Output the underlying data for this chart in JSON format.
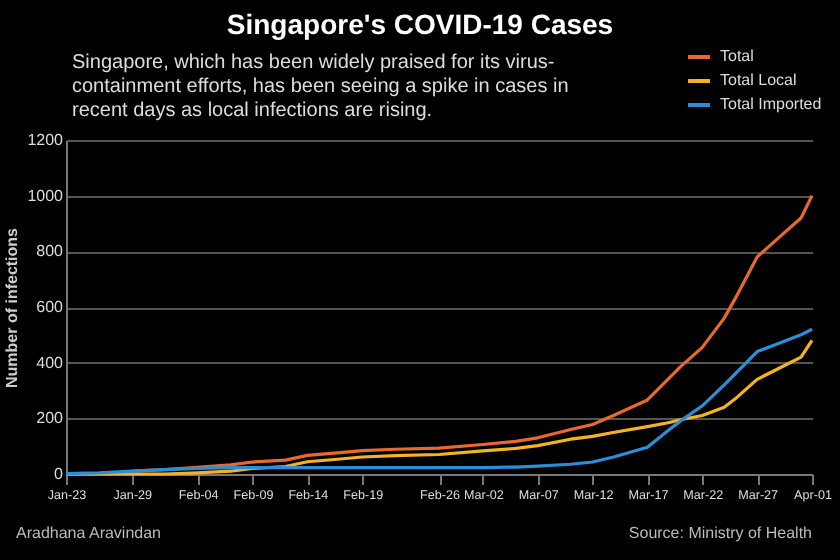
{
  "chart_data": {
    "type": "line",
    "title": "Singapore's COVID-19 Cases",
    "subtitle": "Singapore, which has been widely praised for its virus-containment efforts, has been seeing a spike in cases in recent days as local infections are rising.",
    "ylabel": "Number of infections",
    "annotations": [
      "Aradhana Aravindan",
      "Source: Ministry of Health"
    ],
    "x": [
      "--01-23",
      "--01-26",
      "--01-29",
      "--02-01",
      "--02-04",
      "--02-07",
      "--02-09",
      "--02-12",
      "--02-14",
      "--02-17",
      "--02-19",
      "--02-22",
      "--02-26",
      "--03-02",
      "--03-05",
      "--03-07",
      "--03-10",
      "--03-12",
      "--03-14",
      "--03-17",
      "--03-19",
      "--03-20",
      "--03-22",
      "--03-24",
      "--03-25",
      "--03-27",
      "--03-29",
      "--03-31",
      "--04-01"
    ],
    "series": [
      {
        "name": "Total",
        "color": "#e8692c",
        "values": [
          null,
          null,
          10,
          16,
          24,
          33,
          43,
          50,
          67,
          77,
          84,
          89,
          93,
          106,
          117,
          130,
          160,
          178,
          212,
          266,
          345,
          385,
          455,
          560,
          630,
          780,
          850,
          920,
          1000
        ]
      },
      {
        "name": "Total Local",
        "color": "#f5b324",
        "values": [
          0,
          0,
          0,
          0,
          4,
          10,
          20,
          27,
          44,
          54,
          61,
          66,
          70,
          83,
          92,
          102,
          125,
          135,
          150,
          170,
          185,
          195,
          210,
          240,
          270,
          340,
          380,
          420,
          480
        ]
      },
      {
        "name": "Total Imported",
        "color": "#2a8fd6",
        "values": [
          1,
          4,
          10,
          16,
          20,
          23,
          23,
          23,
          23,
          23,
          23,
          23,
          23,
          23,
          25,
          28,
          35,
          43,
          62,
          96,
          160,
          190,
          245,
          320,
          360,
          440,
          470,
          500,
          520
        ]
      }
    ],
    "xlim": [
      "--01-23",
      "--04-01"
    ],
    "xticks": [
      {
        "value": "--01-23",
        "label": "Jan-23"
      },
      {
        "value": "--01-29",
        "label": "Jan-29"
      },
      {
        "value": "--02-04",
        "label": "Feb-04"
      },
      {
        "value": "--02-09",
        "label": "Feb-09"
      },
      {
        "value": "--02-14",
        "label": "Feb-14"
      },
      {
        "value": "--02-19",
        "label": "Feb-19"
      },
      {
        "value": "--02-26",
        "label": "Feb-26"
      },
      {
        "value": "--03-02",
        "label": "Mar-02"
      },
      {
        "value": "--03-07",
        "label": "Mar-07"
      },
      {
        "value": "--03-12",
        "label": "Mar-12"
      },
      {
        "value": "--03-17",
        "label": "Mar-17"
      },
      {
        "value": "--03-22",
        "label": "Mar-22"
      },
      {
        "value": "--03-27",
        "label": "Mar-27"
      },
      {
        "value": "--04-01",
        "label": "Apr-01"
      }
    ],
    "ylim": [
      0,
      1200
    ],
    "yticks": [
      0,
      200,
      400,
      600,
      800,
      1000,
      1200
    ],
    "grid": "y",
    "legend": "top right"
  }
}
